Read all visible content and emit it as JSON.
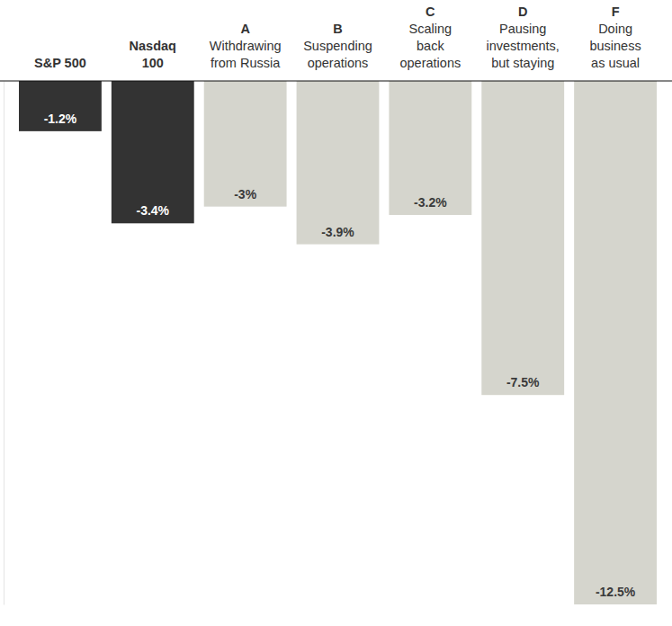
{
  "chart_data": {
    "type": "bar",
    "categories": [
      "S&P 500",
      "Nasdaq\n100",
      "A\nWithdrawing\nfrom Russia",
      "B\nSuspending\noperations",
      "C\nScaling\nback\noperations",
      "D\nPausing\ninvestments,\nbut staying",
      "F\nDoing\nbusiness\nas usual"
    ],
    "values": [
      -1.2,
      -3.4,
      -3,
      -3.9,
      -3.2,
      -7.5,
      -12.5
    ],
    "value_labels": [
      "-1.2%",
      "-3.4%",
      "-3%",
      "-3.9%",
      "-3.2%",
      "-7.5%",
      "-12.5%"
    ],
    "colors": [
      "#333333",
      "#333333",
      "#d5d5cd",
      "#d5d5cd",
      "#d5d5cd",
      "#d5d5cd",
      "#d5d5cd"
    ],
    "ylim": [
      -12.5,
      0
    ],
    "data_labels": true,
    "tick_labels": false,
    "grid": false
  }
}
